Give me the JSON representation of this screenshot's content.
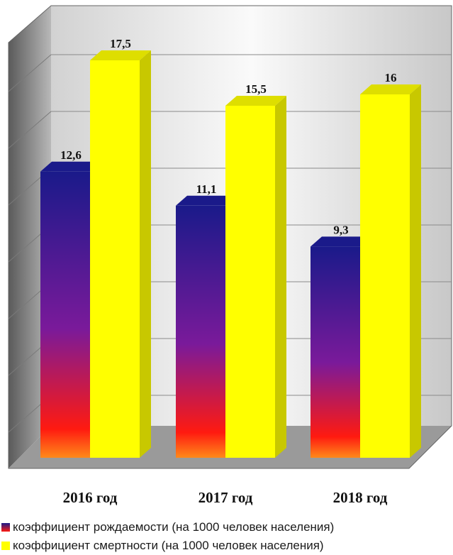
{
  "chart_data": {
    "type": "bar",
    "categories": [
      "2016 год",
      "2017 год",
      "2018 год"
    ],
    "series": [
      {
        "name": "коэффициент рождаемости (на 1000 человек населения)",
        "values": [
          12.6,
          11.1,
          9.3
        ],
        "labels": [
          "12,6",
          "11,1",
          "9,3"
        ]
      },
      {
        "name": "коэффициент смертности (на 1000 человек населения)",
        "values": [
          17.5,
          15.5,
          16
        ],
        "labels": [
          "17,5",
          "15,5",
          "16"
        ]
      }
    ],
    "ylim": [
      0,
      20
    ],
    "grid": true,
    "legend_position": "bottom-left",
    "colors": {
      "birth_top": "#1a1a8a",
      "birth_mid": "#7a1a9a",
      "birth_bottom": "#ff1a10",
      "birth_base": "#ff8a1a",
      "death_front": "#ffff00",
      "death_side": "#c8c800",
      "death_top": "#dede00",
      "wall_dark": "#6a6a6a",
      "wall_light": "#f2f2f2",
      "floor": "#9a9a9a"
    }
  }
}
